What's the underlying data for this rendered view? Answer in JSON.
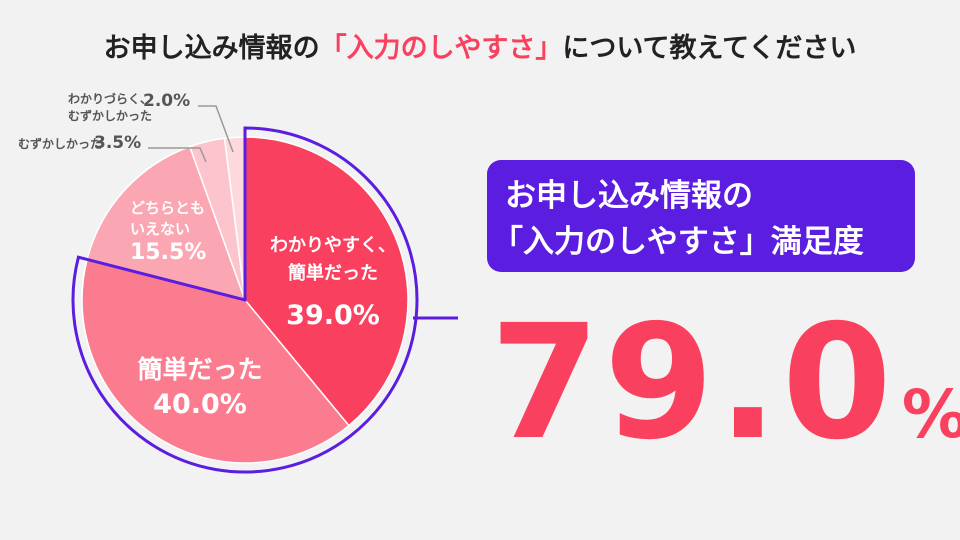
{
  "chart_data": {
    "type": "pie",
    "title": [
      "お申し込み情報の",
      "「入力のしやすさ」",
      "について教えてください"
    ],
    "categories": [
      [
        "わかりやすく、",
        "簡単だった"
      ],
      [
        "簡単だった"
      ],
      [
        "どちらとも",
        "いえない"
      ],
      [
        "むずかしかった"
      ],
      [
        "わかりづらく、",
        "むずかしかった"
      ]
    ],
    "values": [
      39.0,
      40.0,
      15.5,
      3.5,
      2.0
    ],
    "value_labels": [
      "39.0%",
      "40.0%",
      "15.5%",
      "3.5%",
      "2.0%"
    ],
    "colors": [
      "#f9415f",
      "#fb7b8f",
      "#fba7b3",
      "#fcc4cc",
      "#fdd9de"
    ],
    "callout": {
      "lines": [
        "お申し込み情報の",
        "「入力のしやすさ」満足度"
      ],
      "number": "79.0",
      "unit": "%"
    }
  }
}
